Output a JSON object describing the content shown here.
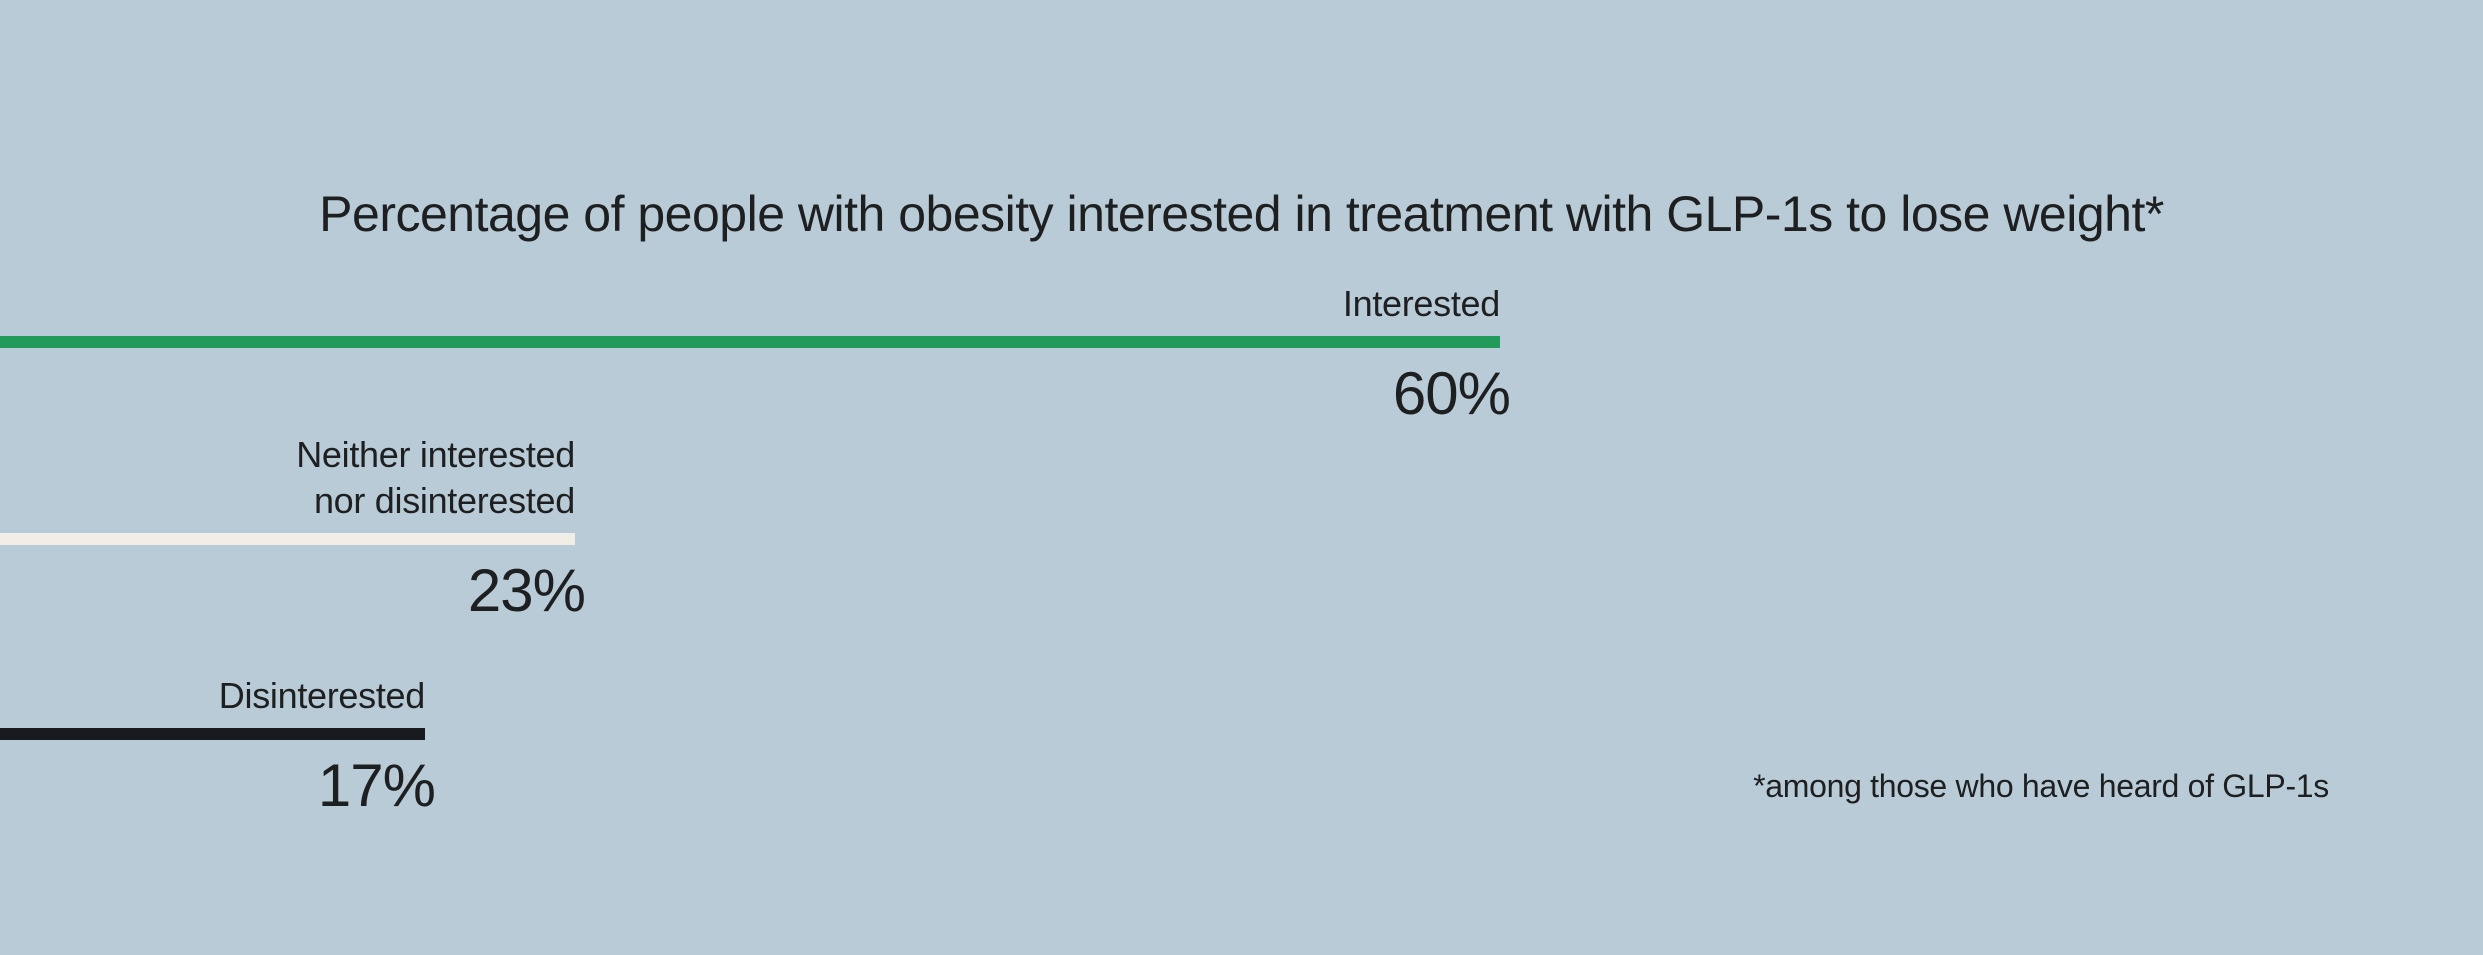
{
  "colors": {
    "background": "#b9cbd6",
    "text": "#1d1f21"
  },
  "chart_data": {
    "type": "bar",
    "orientation": "horizontal",
    "title": "Percentage of people with obesity interested in treatment with GLP-1s to lose weight*",
    "footnote": "*among those who have heard of GLP-1s",
    "unit": "%",
    "xlim": [
      0,
      100
    ],
    "grid": false,
    "legend": "none",
    "categories": [
      "Interested",
      "Neither interested nor disinterested",
      "Disinterested"
    ],
    "values": [
      60,
      23,
      17
    ],
    "bars": [
      {
        "label": "Interested",
        "label_lines": [
          "Interested"
        ],
        "value": 60,
        "display_value": "60%",
        "color": "#229a5a"
      },
      {
        "label": "Neither interested nor disinterested",
        "label_lines": [
          "Neither interested",
          "nor disinterested"
        ],
        "value": 23,
        "display_value": "23%",
        "color": "#f1eee8"
      },
      {
        "label": "Disinterested",
        "label_lines": [
          "Disinterested"
        ],
        "value": 17,
        "display_value": "17%",
        "color": "#181a1d"
      }
    ]
  }
}
